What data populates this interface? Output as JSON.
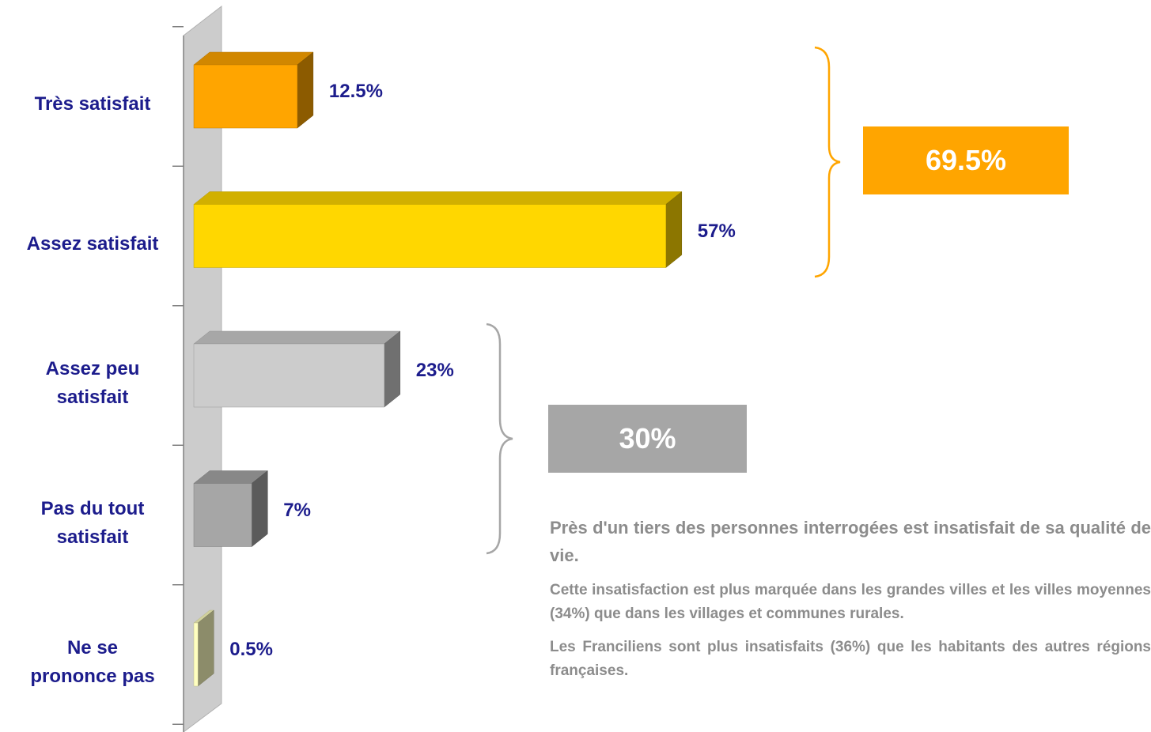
{
  "chart_data": {
    "type": "bar",
    "categories": [
      "Très satisfait",
      "Assez satisfait",
      "Assez peu\nsatisfait",
      "Pas du tout\nsatisfait",
      "Ne se\nprononce pas"
    ],
    "values": [
      12.5,
      57,
      23,
      7,
      0.5
    ],
    "value_labels": [
      "12.5%",
      "57%",
      "23%",
      "7%",
      "0.5%"
    ],
    "colors": [
      "#ffa500",
      "#ffd700",
      "#cccccc",
      "#a6a6a6",
      "#ffffc0"
    ],
    "groups": [
      {
        "value": 69.5,
        "value_label": "69.5%",
        "color": "#ffa500"
      },
      {
        "value": 30,
        "value_label": "30%",
        "color": "#a6a6a6"
      }
    ]
  },
  "notes": [
    "Près d'un tiers des personnes interrogées est insatisfait de sa qualité de vie.",
    "Cette insatisfaction est plus marquée dans les grandes villes et les villes moyennes (34%) que dans les villages et communes rurales.",
    "Les Franciliens sont plus insatisfaits (36%) que les habitants des autres régions françaises."
  ]
}
